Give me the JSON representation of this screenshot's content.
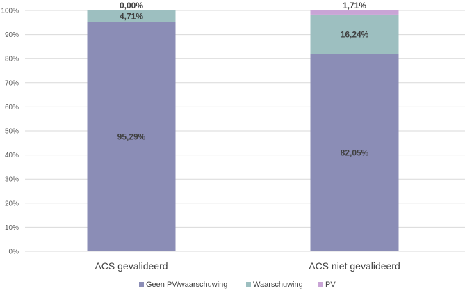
{
  "chart_data": {
    "type": "bar",
    "stacked": true,
    "percent_axis": true,
    "categories": [
      "ACS gevalideerd",
      "ACS niet gevalideerd"
    ],
    "series": [
      {
        "name": "Geen PV/waarschuwing",
        "values": [
          95.29,
          82.05
        ],
        "labels": [
          "95,29%",
          "82,05%"
        ],
        "color": "#8b8db6"
      },
      {
        "name": "Waarschuwing",
        "values": [
          4.71,
          16.24
        ],
        "labels": [
          "4,71%",
          "16,24%"
        ],
        "color": "#9dbfc0"
      },
      {
        "name": "PV",
        "values": [
          0.0,
          1.71
        ],
        "labels": [
          "0,00%",
          "1,71%"
        ],
        "color": "#c9a4d6"
      }
    ],
    "yticks": [
      "0%",
      "10%",
      "20%",
      "30%",
      "40%",
      "50%",
      "60%",
      "70%",
      "80%",
      "90%",
      "100%"
    ],
    "ylim": [
      0,
      100
    ],
    "grid": true,
    "legend": "bottom"
  }
}
